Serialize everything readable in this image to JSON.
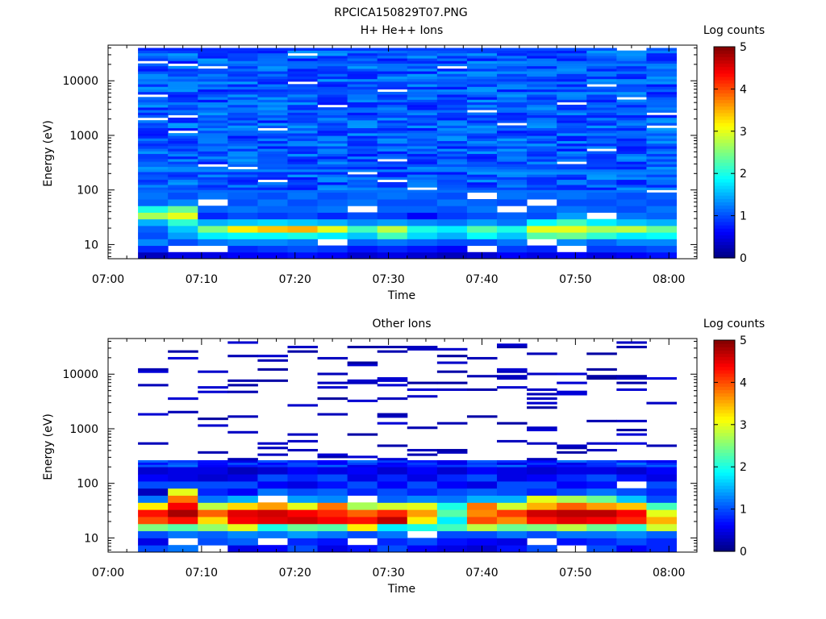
{
  "page_title": "RPCICA150829T07.PNG",
  "colormap": [
    "#00007f",
    "#0000ff",
    "#007fff",
    "#00ffff",
    "#7fff7f",
    "#ffff00",
    "#ff7f00",
    "#ff0000",
    "#7f0000"
  ],
  "chart_data": [
    {
      "type": "heatmap",
      "title": "H+ He++ Ions",
      "xlabel": "Time",
      "ylabel": "Energy (eV)",
      "x_tick_labels": [
        "07:00",
        "07:10",
        "07:20",
        "07:30",
        "07:40",
        "07:50",
        "08:00"
      ],
      "x_range_minutes": [
        0,
        63
      ],
      "y_tick_labels": [
        "10",
        "100",
        "1000",
        "10000"
      ],
      "y_scale": "log",
      "ylim": [
        5.5,
        45000
      ],
      "data_time_range_minutes": [
        3,
        61.5
      ],
      "colorbar": {
        "label": "Log counts",
        "ticks": [
          "0",
          "1",
          "2",
          "3",
          "4",
          "5"
        ],
        "range": [
          0,
          5
        ]
      },
      "columns": [
        {
          "t": 3.2,
          "low": [
            0.3,
            0.8,
            1.3,
            1.0,
            1.1,
            1.5,
            2.7,
            2.0,
            1.1,
            1.2
          ]
        },
        {
          "t": 6.4,
          "low": [
            0.5,
            null,
            1.0,
            1.4,
            1.6,
            2.1,
            3.0,
            2.4,
            1.3,
            1.0
          ]
        },
        {
          "t": 9.6,
          "low": [
            0.5,
            null,
            1.2,
            1.8,
            2.5,
            1.5,
            0.8,
            1.1,
            null,
            1.2
          ]
        },
        {
          "t": 12.8,
          "low": [
            0.6,
            0.8,
            1.3,
            1.9,
            3.2,
            1.6,
            1.0,
            1.2,
            1.0,
            1.1
          ]
        },
        {
          "t": 16.0,
          "low": [
            0.6,
            0.9,
            1.3,
            1.9,
            3.4,
            1.7,
            0.9,
            1.1,
            1.2,
            1.0
          ]
        },
        {
          "t": 19.2,
          "low": [
            0.7,
            1.0,
            1.2,
            2.0,
            3.5,
            1.6,
            1.0,
            1.1,
            1.0,
            1.2
          ]
        },
        {
          "t": 22.4,
          "low": [
            0.6,
            0.9,
            null,
            1.8,
            3.0,
            1.5,
            0.8,
            1.2,
            1.1,
            1.0
          ]
        },
        {
          "t": 25.6,
          "low": [
            0.4,
            0.7,
            1.1,
            1.6,
            2.2,
            1.3,
            1.0,
            null,
            1.2,
            1.1
          ]
        },
        {
          "t": 28.8,
          "low": [
            0.5,
            0.8,
            1.2,
            2.2,
            2.8,
            1.4,
            0.9,
            1.1,
            1.0,
            1.2
          ]
        },
        {
          "t": 32.0,
          "low": [
            0.4,
            0.7,
            1.1,
            1.7,
            2.0,
            1.3,
            0.6,
            1.1,
            1.0,
            1.1
          ]
        },
        {
          "t": 35.2,
          "low": [
            0.3,
            0.6,
            1.0,
            1.5,
            1.8,
            1.2,
            0.9,
            1.0,
            1.2,
            1.0
          ]
        },
        {
          "t": 38.4,
          "low": [
            0.4,
            null,
            1.0,
            1.9,
            2.3,
            1.4,
            1.0,
            1.2,
            1.1,
            null
          ]
        },
        {
          "t": 41.6,
          "low": [
            0.6,
            0.9,
            1.2,
            1.6,
            2.0,
            1.2,
            1.1,
            null,
            1.0,
            1.2
          ]
        },
        {
          "t": 44.8,
          "low": [
            0.5,
            0.8,
            null,
            2.3,
            3.0,
            1.9,
            1.0,
            1.1,
            null,
            1.1
          ]
        },
        {
          "t": 48.0,
          "low": [
            0.6,
            null,
            1.3,
            2.4,
            3.0,
            2.2,
            1.4,
            1.2,
            1.0,
            1.2
          ]
        },
        {
          "t": 51.2,
          "low": [
            0.5,
            0.9,
            1.1,
            2.1,
            2.7,
            1.8,
            null,
            1.1,
            1.0,
            1.1
          ]
        },
        {
          "t": 54.4,
          "low": [
            0.6,
            0.9,
            1.3,
            1.8,
            2.8,
            1.6,
            1.2,
            1.0,
            1.1,
            1.0
          ]
        },
        {
          "t": 57.6,
          "low": [
            0.7,
            1.0,
            1.3,
            1.9,
            2.4,
            1.5,
            1.1,
            1.2,
            1.0,
            1.1
          ]
        }
      ]
    },
    {
      "type": "heatmap",
      "title": "Other Ions",
      "xlabel": "Time",
      "ylabel": "Energy (eV)",
      "x_tick_labels": [
        "07:00",
        "07:10",
        "07:20",
        "07:30",
        "07:40",
        "07:50",
        "08:00"
      ],
      "x_range_minutes": [
        0,
        63
      ],
      "y_tick_labels": [
        "10",
        "100",
        "1000",
        "10000"
      ],
      "y_scale": "log",
      "ylim": [
        5.5,
        45000
      ],
      "data_time_range_minutes": [
        3,
        61.5
      ],
      "colorbar": {
        "label": "Log counts",
        "ticks": [
          "0",
          "1",
          "2",
          "3",
          "4",
          "5"
        ],
        "range": [
          0,
          5
        ]
      },
      "columns": [
        {
          "t": 3.2,
          "low": [
            1.0,
            0.5,
            1.0,
            2.5,
            4.0,
            4.3,
            3.2,
            1.2,
            0.3,
            1.0,
            0.6,
            0.4
          ]
        },
        {
          "t": 6.4,
          "low": [
            1.2,
            null,
            1.2,
            2.3,
            4.3,
            4.8,
            4.4,
            3.8,
            3.0,
            1.0,
            0.5,
            0.5
          ]
        },
        {
          "t": 9.6,
          "low": [
            null,
            1.0,
            1.1,
            2.6,
            3.3,
            3.9,
            2.8,
            1.2,
            0.8,
            1.0,
            0.4,
            0.5
          ]
        },
        {
          "t": 12.8,
          "low": [
            0.5,
            1.1,
            1.3,
            3.0,
            4.4,
            4.5,
            3.3,
            1.5,
            0.6,
            1.0,
            0.5,
            0.3
          ]
        },
        {
          "t": 16.0,
          "low": [
            0.6,
            null,
            1.2,
            2.0,
            4.5,
            4.6,
            3.6,
            null,
            1.2,
            0.6,
            1.0,
            0.4
          ]
        },
        {
          "t": 19.2,
          "low": [
            1.0,
            0.8,
            1.4,
            2.4,
            4.6,
            4.4,
            3.0,
            1.4,
            1.0,
            0.5,
            0.8,
            0.6
          ]
        },
        {
          "t": 22.4,
          "low": [
            0.5,
            0.7,
            1.2,
            2.3,
            4.4,
            4.2,
            3.8,
            1.3,
            1.1,
            0.7,
            1.0,
            0.5
          ]
        },
        {
          "t": 25.6,
          "low": [
            0.7,
            null,
            1.0,
            3.2,
            4.3,
            3.9,
            2.7,
            null,
            0.8,
            1.0,
            0.5,
            0.6
          ]
        },
        {
          "t": 28.8,
          "low": [
            1.0,
            0.8,
            1.2,
            1.8,
            4.7,
            4.2,
            2.9,
            1.1,
            1.0,
            0.6,
            0.8,
            0.4
          ]
        },
        {
          "t": 32.0,
          "low": [
            0.6,
            1.0,
            null,
            2.0,
            3.2,
            3.6,
            3.0,
            1.3,
            0.8,
            1.0,
            0.5,
            0.6
          ]
        },
        {
          "t": 35.2,
          "low": [
            0.5,
            0.7,
            1.0,
            2.2,
            1.8,
            2.3,
            2.0,
            1.2,
            1.0,
            0.6,
            0.8,
            0.4
          ]
        },
        {
          "t": 38.4,
          "low": [
            0.4,
            0.6,
            1.0,
            2.8,
            4.0,
            3.7,
            3.8,
            1.5,
            1.1,
            0.5,
            1.0,
            0.6
          ]
        },
        {
          "t": 41.6,
          "low": [
            0.7,
            0.5,
            1.2,
            2.4,
            3.7,
            4.1,
            2.9,
            1.5,
            1.0,
            1.0,
            0.5,
            0.5
          ]
        },
        {
          "t": 44.8,
          "low": [
            1.0,
            null,
            1.0,
            2.5,
            4.3,
            4.6,
            3.5,
            3.0,
            0.8,
            1.0,
            0.6,
            0.4
          ]
        },
        {
          "t": 48.0,
          "low": [
            null,
            0.7,
            1.2,
            2.8,
            4.5,
            4.7,
            3.9,
            2.7,
            1.0,
            0.6,
            0.8,
            0.5
          ]
        },
        {
          "t": 51.2,
          "low": [
            1.0,
            0.8,
            1.2,
            2.4,
            4.4,
            4.7,
            3.6,
            2.4,
            1.2,
            0.7,
            1.0,
            0.5
          ]
        },
        {
          "t": 54.4,
          "low": [
            0.6,
            1.0,
            1.3,
            2.1,
            4.2,
            4.4,
            3.4,
            1.6,
            1.0,
            null,
            0.7,
            0.4
          ]
        },
        {
          "t": 57.6,
          "low": [
            0.8,
            0.8,
            1.1,
            2.9,
            3.5,
            3.0,
            2.2,
            1.0,
            0.8,
            1.0,
            0.5,
            0.6
          ]
        }
      ]
    }
  ]
}
